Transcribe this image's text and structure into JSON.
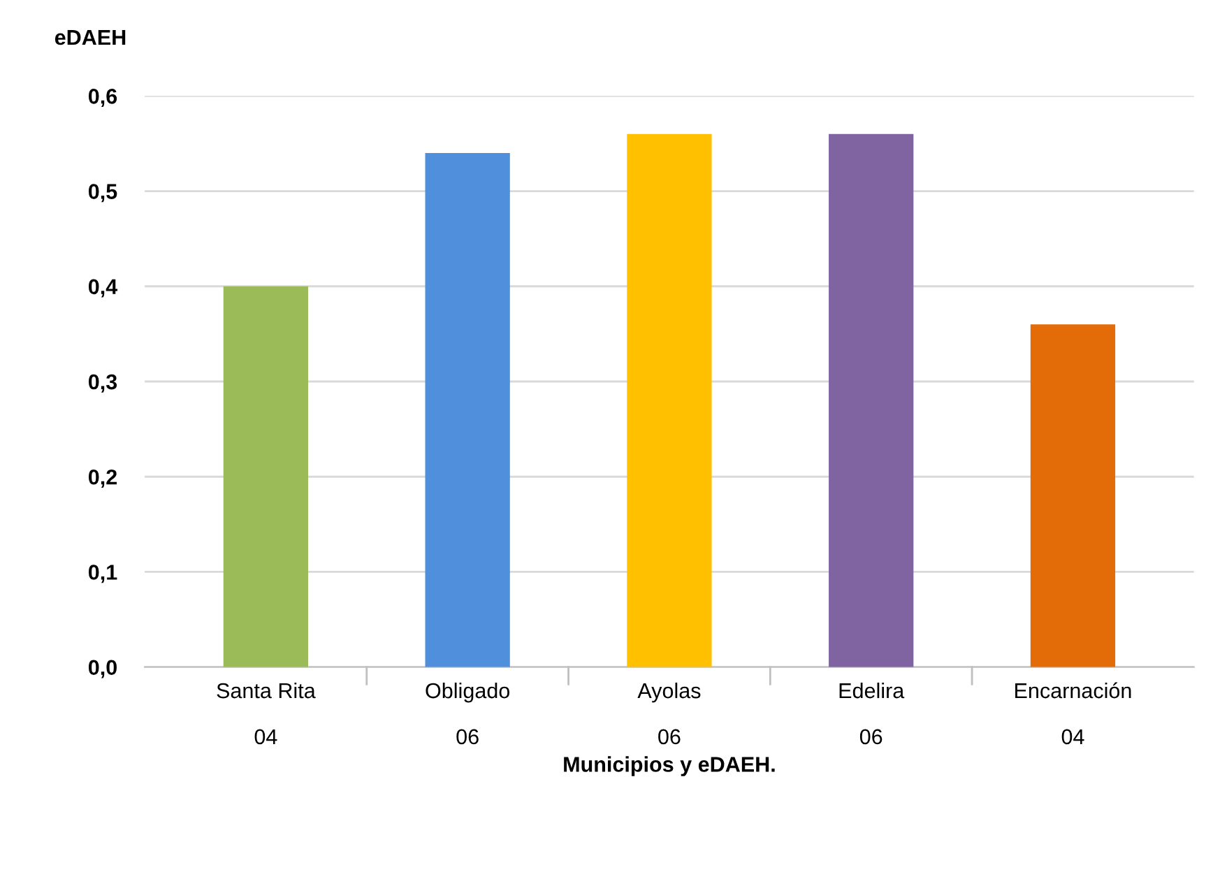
{
  "chart_data": {
    "type": "bar",
    "ylabel": "eDAEH",
    "xlabel": "Municipios y eDAEH.",
    "categories": [
      "Santa Rita\n\n04",
      "Obligado\n\n06",
      "Ayolas\n\n06",
      "Edelira\n\n06",
      "Encarnación\n\n04"
    ],
    "values": [
      0.4,
      0.54,
      0.56,
      0.56,
      0.36
    ],
    "colors": [
      "#9bbb59",
      "#4f8fdb",
      "#ffc000",
      "#8064a2",
      "#e36c09"
    ],
    "ylim": [
      0,
      0.6
    ],
    "yticks": [
      {
        "value": 0,
        "label": "0,0"
      },
      {
        "value": 0.1,
        "label": "0,1"
      },
      {
        "value": 0.2,
        "label": "0,2"
      },
      {
        "value": 0.3,
        "label": "0,3"
      },
      {
        "value": 0.4,
        "label": "0,4"
      },
      {
        "value": 0.5,
        "label": "0,5"
      },
      {
        "value": 0.6,
        "label": "0,6"
      }
    ],
    "grid": "y"
  }
}
